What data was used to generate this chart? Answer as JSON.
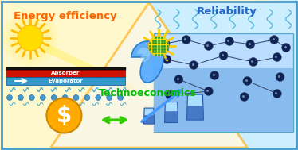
{
  "bg_color": "#ffffff",
  "border_color": "#4499cc",
  "left_bg": "#fff8cc",
  "right_bg": "#cceeff",
  "bottom_bg": "#ddffcc",
  "tri_color": "#ffaa00",
  "tri_fill": "#f8f8f8",
  "energy_label": "Energy efficiency",
  "energy_color": "#ff6600",
  "reliability_label": "Reliability",
  "reliability_color": "#2266cc",
  "techno_label": "Technoeconomics",
  "techno_color": "#00bb00",
  "sun_color": "#ffdd00",
  "sun_ray_color": "#ffbb00",
  "absorber_color": "#cc1100",
  "absorber_dark": "#111111",
  "evaporator_color": "#3399cc",
  "absorber_label": "Absorber",
  "evaporator_label": "Evaporator",
  "wave_color": "#44aacc",
  "dot_color": "#2255aa",
  "nano_color": "#112255",
  "nano_box": "#88ccee",
  "nano_box2": "#44aadd",
  "drop_color": "#44aaff",
  "drop_edge": "#2277cc",
  "sun2_color": "#ffcc00",
  "green_nano": "#228833",
  "dollar_bg": "#ffaa00",
  "dollar_color": "#ffffff",
  "arrow_green": "#33cc00",
  "arrow_blue": "#4499ff",
  "cup_light": "#aaddff",
  "cup_dark": "#3366bb",
  "cup_edge": "#2255aa"
}
